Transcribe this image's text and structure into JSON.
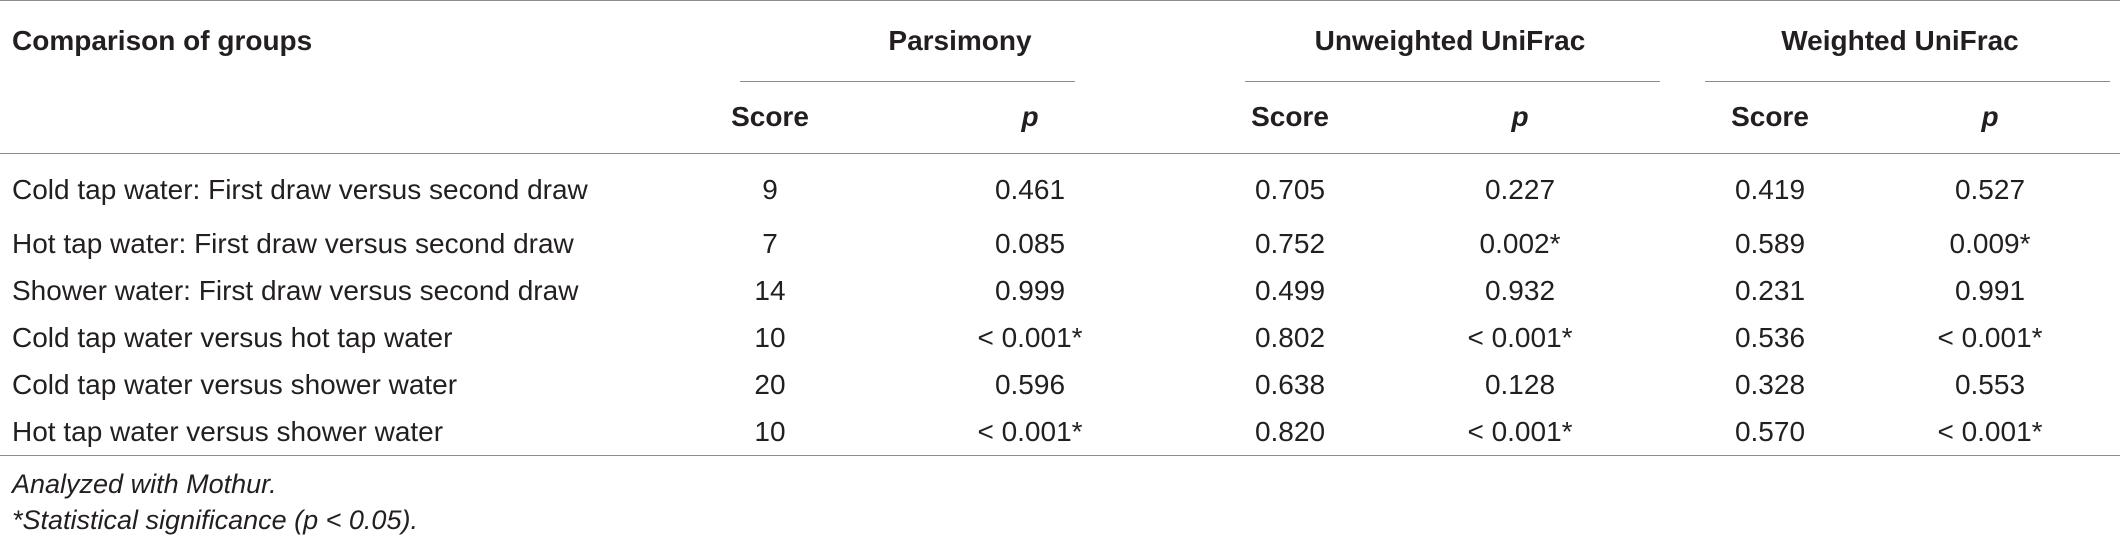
{
  "table": {
    "header": {
      "first_col": "Comparison of groups",
      "groups": [
        "Parsimony",
        "Unweighted UniFrac",
        "Weighted UniFrac"
      ],
      "sub": [
        "Score",
        "p",
        "Score",
        "p",
        "Score",
        "p"
      ]
    },
    "rows": [
      [
        "Cold tap water: First draw versus second draw",
        "9",
        "0.461",
        "0.705",
        "0.227",
        "0.419",
        "0.527"
      ],
      [
        "Hot tap water: First draw versus second draw",
        "7",
        "0.085",
        "0.752",
        "0.002*",
        "0.589",
        "0.009*"
      ],
      [
        "Shower water: First draw versus second draw",
        "14",
        "0.999",
        "0.499",
        "0.932",
        "0.231",
        "0.991"
      ],
      [
        "Cold tap water versus hot tap water",
        "10",
        "< 0.001*",
        "0.802",
        "< 0.001*",
        "0.536",
        "< 0.001*"
      ],
      [
        "Cold tap water versus shower water",
        "20",
        "0.596",
        "0.638",
        "0.128",
        "0.328",
        "0.553"
      ],
      [
        "Hot tap water versus shower water",
        "10",
        "< 0.001*",
        "0.820",
        "< 0.001*",
        "0.570",
        "< 0.001*"
      ]
    ]
  },
  "footnotes": {
    "line1": "Analyzed with Mothur.",
    "line2": "*Statistical significance (p < 0.05)."
  }
}
